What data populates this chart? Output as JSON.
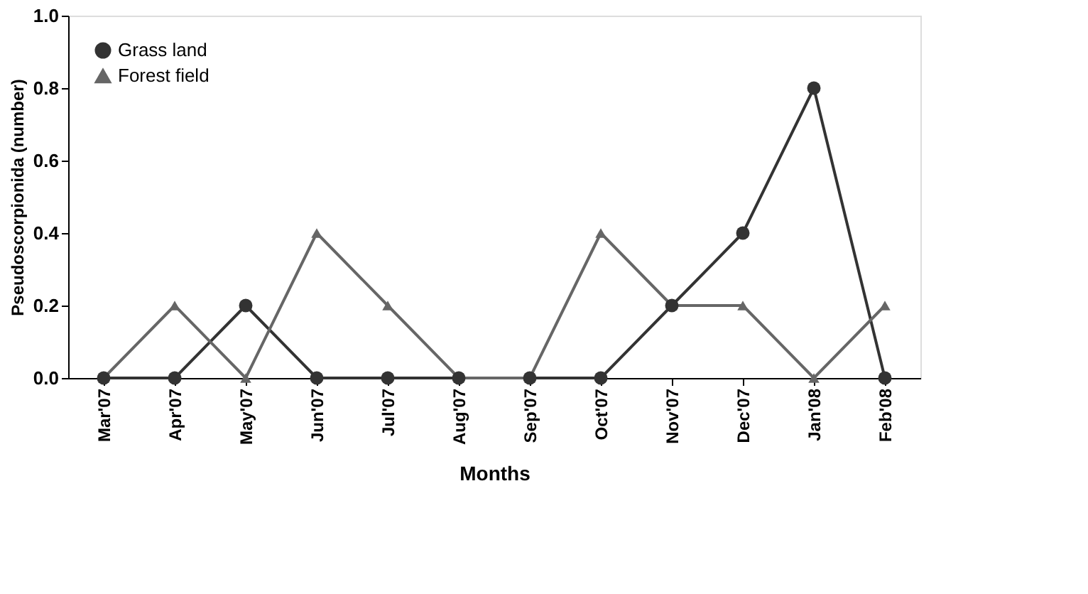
{
  "chart_data": {
    "type": "line",
    "xlabel": "Months",
    "ylabel": "Pseudoscorpionida (number)",
    "categories": [
      "Mar'07",
      "Apr'07",
      "May'07",
      "Jun'07",
      "Jul'07",
      "Aug'07",
      "Sep'07",
      "Oct'07",
      "Nov'07",
      "Dec'07",
      "Jan'08",
      "Feb'08"
    ],
    "series": [
      {
        "name": "Grass land",
        "color": "#333333",
        "marker": "circle",
        "values": [
          0,
          0,
          0.2,
          0,
          0,
          0,
          0,
          0,
          0.2,
          0.4,
          0.8,
          0
        ]
      },
      {
        "name": "Forest field",
        "color": "#666666",
        "marker": "triangle",
        "values": [
          0,
          0.2,
          0,
          0.4,
          0.2,
          0,
          0,
          0.4,
          0.2,
          0.2,
          0,
          0.2
        ]
      }
    ],
    "ylim": [
      0,
      1
    ],
    "yticks": [
      {
        "value": 0,
        "label": "0.0"
      },
      {
        "value": 0.2,
        "label": "0.2"
      },
      {
        "value": 0.4,
        "label": "0.4"
      },
      {
        "value": 0.6,
        "label": "0.6"
      },
      {
        "value": 0.8,
        "label": "0.8"
      },
      {
        "value": 1,
        "label": "1.0"
      }
    ],
    "grid": false,
    "legend": "top left",
    "line_style": "solid"
  }
}
